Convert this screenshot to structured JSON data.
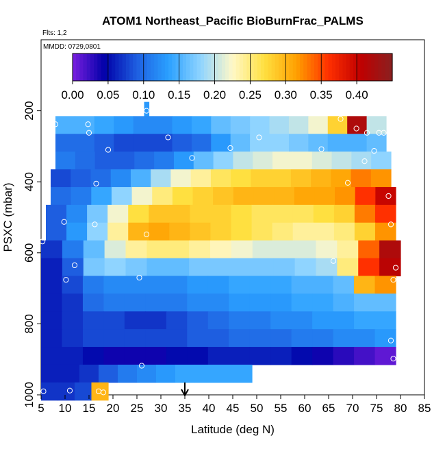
{
  "chart_data": {
    "type": "heatmap",
    "title": "ATOM1 Northeast_Pacific BioBurnFrac_PALMS",
    "subtitle_flts": "Flts: 1,2",
    "subtitle_mmdd": "MMDD: 0729,0801",
    "xlabel": "Latitude (deg N)",
    "ylabel": "PSXC (mbar)",
    "xlim": [
      5,
      85
    ],
    "ylim": [
      1000,
      0
    ],
    "x_ticks": [
      "5",
      "10",
      "15",
      "20",
      "25",
      "30",
      "35",
      "40",
      "45",
      "50",
      "55",
      "60",
      "65",
      "70",
      "75",
      "80",
      "85"
    ],
    "y_ticks": [
      "200",
      "400",
      "600",
      "800",
      "1000"
    ],
    "colorbar": {
      "range": [
        0,
        0.45
      ],
      "tick_labels": [
        "0.00",
        "0.05",
        "0.10",
        "0.15",
        "0.20",
        "0.25",
        "0.30",
        "0.35",
        "0.40"
      ],
      "colors": [
        "#7a1fe0",
        "#0000a8",
        "#1e5ee0",
        "#2aa0ff",
        "#8fd4ff",
        "#fff8c8",
        "#ffe040",
        "#ffa000",
        "#ff3000",
        "#c00000",
        "#8a2020"
      ]
    },
    "marker": {
      "x": 35,
      "label": "arrow"
    },
    "rows": [
      {
        "p": 200,
        "x0": 26.5,
        "x1": 27.5,
        "v": [
          0.13
        ]
      },
      {
        "p": 240,
        "x0": 8,
        "x1": 77,
        "v": [
          0.15,
          0.15,
          0.14,
          0.13,
          0.12,
          0.12,
          0.13,
          0.14,
          0.16,
          0.17,
          0.18,
          0.19,
          0.2,
          0.22,
          0.28,
          0.42,
          0.2
        ]
      },
      {
        "p": 290,
        "x0": 8,
        "x1": 77,
        "v": [
          0.1,
          0.1,
          0.09,
          0.08,
          0.08,
          0.08,
          0.09,
          0.1,
          0.13,
          0.16,
          0.18,
          0.18,
          0.17,
          0.16,
          0.15,
          0.15,
          0.16
        ]
      },
      {
        "p": 340,
        "x0": 8,
        "x1": 78,
        "v": [
          0.11,
          0.1,
          0.09,
          0.09,
          0.1,
          0.11,
          0.13,
          0.16,
          0.18,
          0.2,
          0.21,
          0.22,
          0.22,
          0.21,
          0.2,
          0.19,
          0.18
        ]
      },
      {
        "p": 390,
        "x0": 7,
        "x1": 78,
        "v": [
          0.08,
          0.09,
          0.1,
          0.12,
          0.15,
          0.19,
          0.22,
          0.24,
          0.26,
          0.27,
          0.28,
          0.28,
          0.29,
          0.3,
          0.31,
          0.33,
          0.32
        ]
      },
      {
        "p": 440,
        "x0": 7,
        "x1": 79,
        "v": [
          0.1,
          0.11,
          0.14,
          0.18,
          0.22,
          0.25,
          0.27,
          0.28,
          0.29,
          0.3,
          0.3,
          0.3,
          0.31,
          0.31,
          0.32,
          0.36,
          0.4
        ]
      },
      {
        "p": 490,
        "x0": 6,
        "x1": 79,
        "v": [
          0.09,
          0.12,
          0.17,
          0.22,
          0.27,
          0.29,
          0.29,
          0.28,
          0.28,
          0.27,
          0.26,
          0.26,
          0.26,
          0.27,
          0.28,
          0.33,
          0.36
        ]
      },
      {
        "p": 540,
        "x0": 6,
        "x1": 79,
        "v": [
          0.09,
          0.13,
          0.18,
          0.24,
          0.3,
          0.31,
          0.3,
          0.29,
          0.28,
          0.27,
          0.26,
          0.25,
          0.24,
          0.24,
          0.25,
          0.28,
          0.32
        ]
      },
      {
        "p": 590,
        "x0": 5,
        "x1": 80,
        "v": [
          0.07,
          0.11,
          0.16,
          0.21,
          0.24,
          0.25,
          0.25,
          0.24,
          0.23,
          0.22,
          0.21,
          0.21,
          0.21,
          0.22,
          0.24,
          0.34,
          0.42
        ]
      },
      {
        "p": 640,
        "x0": 5,
        "x1": 80,
        "v": [
          0.06,
          0.09,
          0.17,
          0.18,
          0.17,
          0.16,
          0.16,
          0.17,
          0.17,
          0.17,
          0.17,
          0.17,
          0.18,
          0.19,
          0.25,
          0.36,
          0.41
        ]
      },
      {
        "p": 690,
        "x0": 5,
        "x1": 79,
        "v": [
          0.06,
          0.08,
          0.11,
          0.12,
          0.12,
          0.12,
          0.12,
          0.13,
          0.13,
          0.14,
          0.14,
          0.14,
          0.15,
          0.15,
          0.16,
          0.3,
          0.32
        ]
      },
      {
        "p": 740,
        "x0": 5,
        "x1": 79,
        "v": [
          0.06,
          0.07,
          0.1,
          0.11,
          0.11,
          0.11,
          0.11,
          0.12,
          0.12,
          0.13,
          0.13,
          0.13,
          0.14,
          0.14,
          0.15,
          0.16,
          0.16
        ]
      },
      {
        "p": 790,
        "x0": 5,
        "x1": 79,
        "v": [
          0.06,
          0.07,
          0.08,
          0.08,
          0.07,
          0.07,
          0.08,
          0.09,
          0.1,
          0.11,
          0.11,
          0.12,
          0.12,
          0.13,
          0.13,
          0.14,
          0.14
        ]
      },
      {
        "p": 840,
        "x0": 5,
        "x1": 79,
        "v": [
          0.06,
          0.07,
          0.08,
          0.08,
          0.08,
          0.08,
          0.08,
          0.09,
          0.09,
          0.1,
          0.1,
          0.1,
          0.11,
          0.11,
          0.12,
          0.12,
          0.13
        ]
      },
      {
        "p": 890,
        "x0": 5,
        "x1": 79,
        "v": [
          0.06,
          0.06,
          0.05,
          0.04,
          0.04,
          0.04,
          0.05,
          0.05,
          0.06,
          0.06,
          0.06,
          0.06,
          0.05,
          0.04,
          0.03,
          0.02,
          0.01
        ]
      },
      {
        "p": 940,
        "x0": 5,
        "x1": 49,
        "v": [
          0.06,
          0.06,
          0.07,
          0.09,
          0.11,
          0.12,
          0.13,
          0.14,
          0.14,
          0.14,
          0.14
        ]
      },
      {
        "p": 990,
        "x0": 5,
        "x1": 19,
        "v": [
          0.07,
          0.07,
          0.08,
          0.3
        ]
      }
    ],
    "points": [
      {
        "x": 27,
        "y": 200
      },
      {
        "x": 8,
        "y": 238
      },
      {
        "x": 14.8,
        "y": 238
      },
      {
        "x": 67.5,
        "y": 223
      },
      {
        "x": 70.8,
        "y": 250
      },
      {
        "x": 73,
        "y": 262
      },
      {
        "x": 76.5,
        "y": 262
      },
      {
        "x": 15,
        "y": 262
      },
      {
        "x": 31.5,
        "y": 275
      },
      {
        "x": 50.5,
        "y": 275
      },
      {
        "x": 75.5,
        "y": 262
      },
      {
        "x": 19,
        "y": 310
      },
      {
        "x": 44.5,
        "y": 305
      },
      {
        "x": 63.5,
        "y": 308
      },
      {
        "x": 74.5,
        "y": 313
      },
      {
        "x": 72.5,
        "y": 342
      },
      {
        "x": 36.5,
        "y": 333
      },
      {
        "x": 16.5,
        "y": 405
      },
      {
        "x": 69,
        "y": 403
      },
      {
        "x": 77.5,
        "y": 440
      },
      {
        "x": 9.8,
        "y": 513
      },
      {
        "x": 16.2,
        "y": 520
      },
      {
        "x": 27,
        "y": 548
      },
      {
        "x": 78,
        "y": 520
      },
      {
        "x": 5.3,
        "y": 568
      },
      {
        "x": 12,
        "y": 635
      },
      {
        "x": 66,
        "y": 623
      },
      {
        "x": 79,
        "y": 642
      },
      {
        "x": 10.2,
        "y": 676
      },
      {
        "x": 25.5,
        "y": 670
      },
      {
        "x": 78.5,
        "y": 676
      },
      {
        "x": 78,
        "y": 847
      },
      {
        "x": 78.5,
        "y": 898
      },
      {
        "x": 26,
        "y": 918
      },
      {
        "x": 5.5,
        "y": 990
      },
      {
        "x": 11,
        "y": 988
      },
      {
        "x": 17,
        "y": 990
      },
      {
        "x": 18,
        "y": 993
      }
    ]
  }
}
